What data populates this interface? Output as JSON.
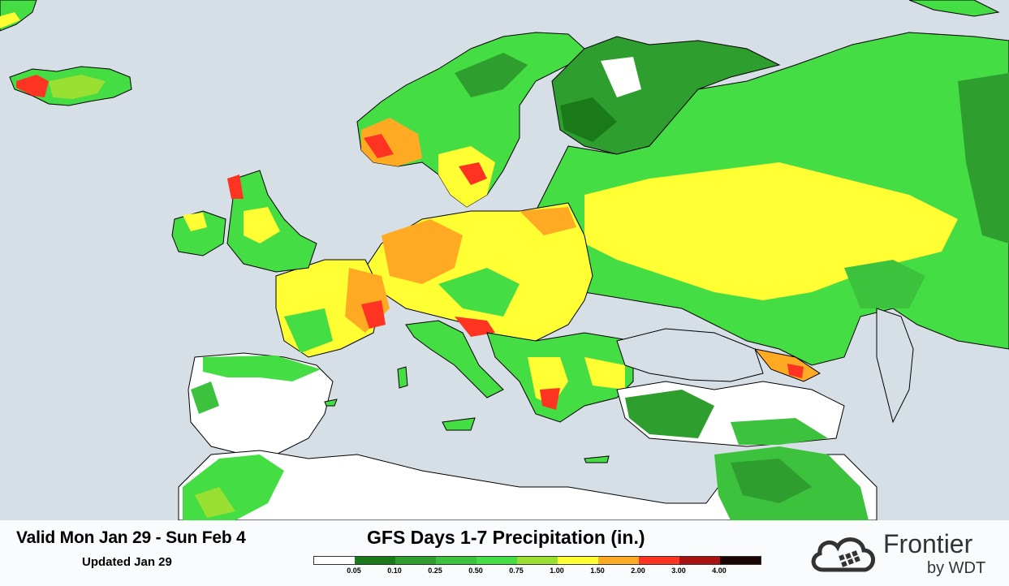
{
  "header": {
    "valid_range": "Valid Mon Jan 29 - Sun Feb 4",
    "updated": "Updated Jan 29",
    "title": "GFS Days 1-7 Precipitation (in.)"
  },
  "legend": {
    "labels": [
      "0.05",
      "0.10",
      "0.25",
      "0.50",
      "0.75",
      "1.00",
      "1.50",
      "2.00",
      "3.00",
      "4.00"
    ],
    "colors": [
      "#ffffff",
      "#1a7a1a",
      "#2e9e2e",
      "#3cc23c",
      "#44dd44",
      "#99e033",
      "#ffff33",
      "#ffaa22",
      "#ff3322",
      "#aa1111",
      "#1a0505"
    ]
  },
  "brand": {
    "name": "Frontier",
    "sub": "by WDT",
    "icon": "cloud-grid-icon"
  },
  "colors": {
    "sea": "#d6dee6",
    "no_precip": "#ffffff",
    "border": "#000000"
  }
}
